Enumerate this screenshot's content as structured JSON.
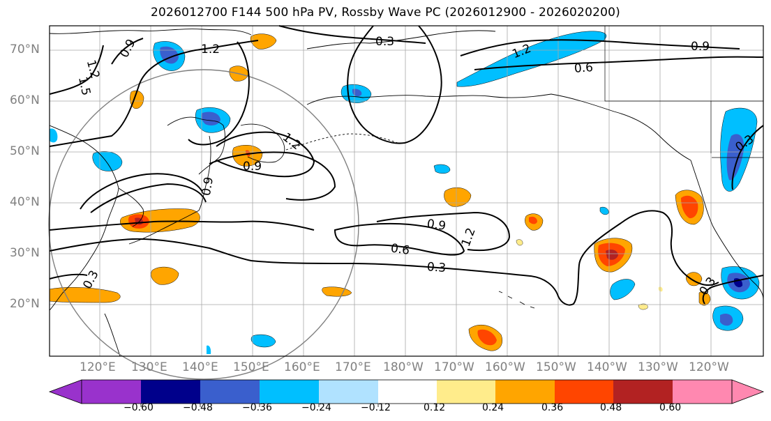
{
  "title": "2026012700 F144 500 hPa PV, Rossby Wave PC (2026012900 - 2026020200)",
  "latitude_labels": [
    "70°N",
    "60°N",
    "50°N",
    "40°N",
    "30°N",
    "20°N"
  ],
  "longitude_labels": [
    "120°E",
    "130°E",
    "140°E",
    "150°E",
    "160°E",
    "170°E",
    "180°W",
    "170°W",
    "160°W",
    "150°W",
    "140°W",
    "130°W",
    "120°W"
  ],
  "contour_labels": [
    "0.9",
    "1.2",
    "1.2",
    "1.5",
    "0.3",
    "1.2",
    "0.9",
    "0.6",
    "1.2",
    "0.9",
    "0.9",
    "0.9",
    "1.2",
    "0.6",
    "0.3",
    "0.3",
    "0.3",
    "0.3"
  ],
  "colorbar": {
    "tick_labels": [
      "−0.60",
      "−0.48",
      "−0.36",
      "−0.24",
      "−0.12",
      "0.12",
      "0.24",
      "0.36",
      "0.48",
      "0.60"
    ],
    "colors": [
      "#9932cc",
      "#00008b",
      "#3a5fcd",
      "#00bfff",
      "#b0e2ff",
      "#ffffff",
      "#ffec8b",
      "#ffa500",
      "#ff4500",
      "#b22222",
      "#ff88b0"
    ]
  },
  "fill_colors": {
    "blue_light": "#b0e2ff",
    "blue": "#00bfff",
    "blue_mid": "#3a5fcd",
    "navy": "#00008b",
    "yellow": "#ffec8b",
    "orange": "#ffa500",
    "red": "#ff4500",
    "darkred": "#b22222"
  }
}
